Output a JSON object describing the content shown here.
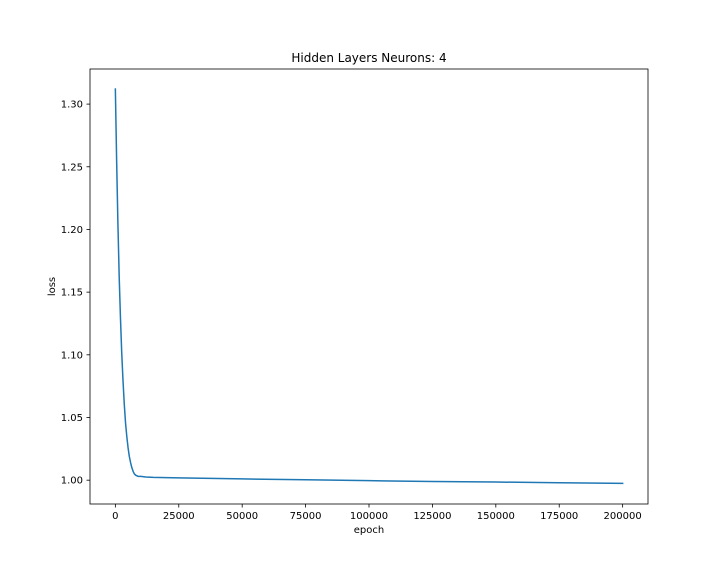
{
  "chart_data": {
    "type": "line",
    "title": "Hidden Layers Neurons: 4",
    "xlabel": "epoch",
    "ylabel": "loss",
    "xlim": [
      -10000,
      210000
    ],
    "ylim": [
      0.981,
      1.328
    ],
    "grid": false,
    "x_ticks": [
      0,
      25000,
      50000,
      75000,
      100000,
      125000,
      150000,
      175000,
      200000
    ],
    "x_tick_labels": [
      "0",
      "25000",
      "50000",
      "75000",
      "100000",
      "125000",
      "150000",
      "175000",
      "200000"
    ],
    "y_ticks": [
      1.0,
      1.05,
      1.1,
      1.15,
      1.2,
      1.25,
      1.3
    ],
    "y_tick_labels": [
      "1.00",
      "1.05",
      "1.10",
      "1.15",
      "1.20",
      "1.25",
      "1.30"
    ],
    "series": [
      {
        "color": "#1f77b4",
        "x": [
          0,
          500,
          1000,
          1500,
          2000,
          2500,
          3000,
          3500,
          4000,
          4500,
          5000,
          5500,
          6000,
          6500,
          7000,
          7500,
          8000,
          9000,
          10000,
          12000,
          15000,
          20000,
          25000,
          50000,
          75000,
          100000,
          125000,
          150000,
          175000,
          200000
        ],
        "y": [
          1.312,
          1.255,
          1.205,
          1.163,
          1.13,
          1.102,
          1.08,
          1.061,
          1.046,
          1.035,
          1.026,
          1.019,
          1.014,
          1.01,
          1.007,
          1.005,
          1.004,
          1.003,
          1.003,
          1.0025,
          1.0022,
          1.002,
          1.0018,
          1.001,
          1.0003,
          0.9996,
          0.999,
          0.9985,
          0.998,
          0.9975
        ]
      }
    ]
  }
}
